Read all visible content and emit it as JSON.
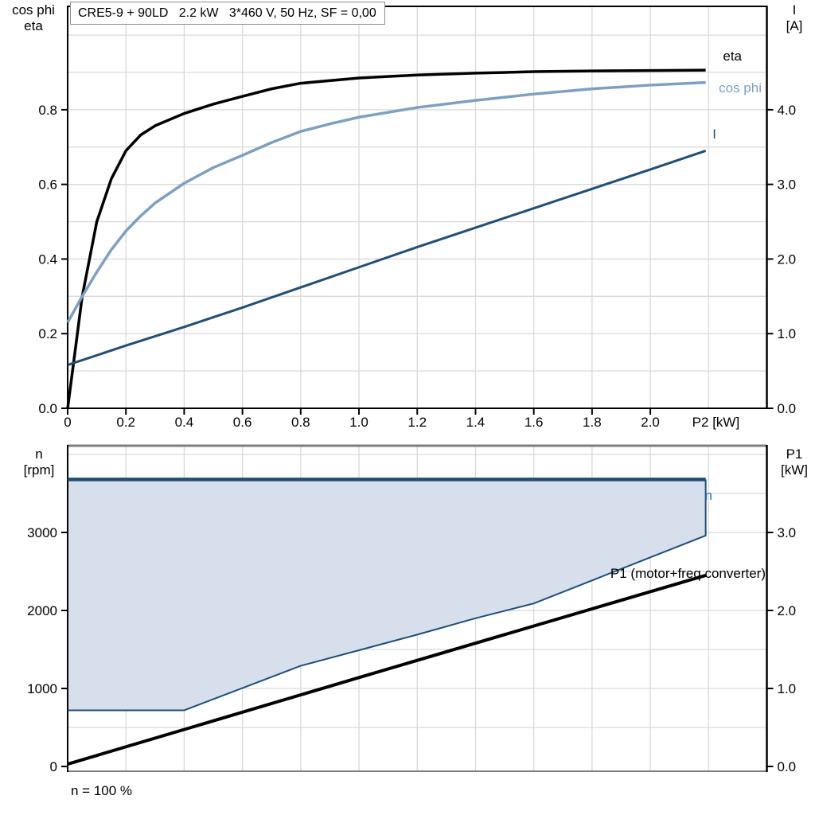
{
  "title": "CRE5-9 + 90LD   2.2 kW   3*460 V, 50 Hz, SF = 0,00",
  "footnote": "n = 100 %",
  "labels": {
    "top_left_axis_line1": "cos phi",
    "top_left_axis_line2": "eta",
    "top_right_axis_line1": "I",
    "top_right_axis_line2": "[A]",
    "bottom_left_axis_line1": "n",
    "bottom_left_axis_line2": "[rpm]",
    "bottom_right_axis_line1": "P1",
    "bottom_right_axis_line2": "[kW]",
    "curve_eta": "eta",
    "curve_cos_phi": "cos phi",
    "curve_current": "I",
    "curve_speed": "n",
    "curve_p1": "P1 (motor+freq.converter)"
  },
  "colors": {
    "black": "#000000",
    "dark_blue": "#1F4E79",
    "steel_blue": "#7C9FC2",
    "label_blue": "#2E74B5",
    "area_fill": "#D6DFEB",
    "grid": "#D9D9D9",
    "frame_gray": "#7F7F7F"
  },
  "chart_data": [
    {
      "id": "top",
      "type": "line",
      "title": "CRE5-9 + 90LD   2.2 kW   3*460 V, 50 Hz, SF = 0,00",
      "x_axis": {
        "label": "P2 [kW]",
        "min": 0,
        "max": 2.4,
        "grid_step": 0.2,
        "ticks": [
          {
            "v": 0,
            "t": "0"
          },
          {
            "v": 0.2,
            "t": "0.2"
          },
          {
            "v": 0.4,
            "t": "0.4"
          },
          {
            "v": 0.6,
            "t": "0.6"
          },
          {
            "v": 0.8,
            "t": "0.8"
          },
          {
            "v": 1.0,
            "t": "1.0"
          },
          {
            "v": 1.2,
            "t": "1.2"
          },
          {
            "v": 1.4,
            "t": "1.4"
          },
          {
            "v": 1.6,
            "t": "1.6"
          },
          {
            "v": 1.8,
            "t": "1.8"
          },
          {
            "v": 2.0,
            "t": "2.0"
          }
        ],
        "label_at": 2.225
      },
      "y_left": {
        "label": "cos phi / eta",
        "min": 0,
        "max": 1.077,
        "grid_step": 0.1,
        "ticks": [
          {
            "v": 0,
            "t": "0.0"
          },
          {
            "v": 0.2,
            "t": "0.2"
          },
          {
            "v": 0.4,
            "t": "0.4"
          },
          {
            "v": 0.6,
            "t": "0.6"
          },
          {
            "v": 0.8,
            "t": "0.8"
          }
        ]
      },
      "y_right": {
        "label": "I [A]",
        "min": 0,
        "max": 5.385,
        "ticks": [
          {
            "v": 0,
            "t": "0.0"
          },
          {
            "v": 1,
            "t": "1.0"
          },
          {
            "v": 2,
            "t": "2.0"
          },
          {
            "v": 3,
            "t": "3.0"
          },
          {
            "v": 4,
            "t": "4.0"
          }
        ]
      },
      "series": [
        {
          "name": "eta",
          "axis": "left",
          "color": "#000000",
          "width": 3.5,
          "points": [
            [
              0,
              0
            ],
            [
              0.03,
              0.18
            ],
            [
              0.05,
              0.3
            ],
            [
              0.08,
              0.42
            ],
            [
              0.1,
              0.5
            ],
            [
              0.15,
              0.615
            ],
            [
              0.2,
              0.69
            ],
            [
              0.25,
              0.732
            ],
            [
              0.3,
              0.757
            ],
            [
              0.4,
              0.79
            ],
            [
              0.5,
              0.815
            ],
            [
              0.6,
              0.836
            ],
            [
              0.7,
              0.856
            ],
            [
              0.8,
              0.871
            ],
            [
              1.0,
              0.885
            ],
            [
              1.2,
              0.893
            ],
            [
              1.4,
              0.898
            ],
            [
              1.6,
              0.902
            ],
            [
              1.8,
              0.904
            ],
            [
              2.0,
              0.905
            ],
            [
              2.19,
              0.906
            ]
          ]
        },
        {
          "name": "cos phi",
          "axis": "left",
          "color": "#7C9FC2",
          "width": 3.5,
          "points": [
            [
              0,
              0.23
            ],
            [
              0.05,
              0.3
            ],
            [
              0.1,
              0.365
            ],
            [
              0.15,
              0.425
            ],
            [
              0.2,
              0.475
            ],
            [
              0.25,
              0.515
            ],
            [
              0.3,
              0.55
            ],
            [
              0.4,
              0.603
            ],
            [
              0.5,
              0.645
            ],
            [
              0.6,
              0.678
            ],
            [
              0.7,
              0.712
            ],
            [
              0.8,
              0.742
            ],
            [
              0.9,
              0.762
            ],
            [
              1.0,
              0.78
            ],
            [
              1.2,
              0.806
            ],
            [
              1.4,
              0.825
            ],
            [
              1.6,
              0.842
            ],
            [
              1.8,
              0.856
            ],
            [
              2.0,
              0.866
            ],
            [
              2.19,
              0.873
            ]
          ]
        },
        {
          "name": "I",
          "axis": "right",
          "color": "#1F4E79",
          "width": 3,
          "points": [
            [
              0,
              0.58
            ],
            [
              0.2,
              0.84
            ],
            [
              0.4,
              1.09
            ],
            [
              0.6,
              1.35
            ],
            [
              0.8,
              1.62
            ],
            [
              1.0,
              1.89
            ],
            [
              1.2,
              2.16
            ],
            [
              1.4,
              2.42
            ],
            [
              1.6,
              2.68
            ],
            [
              1.8,
              2.94
            ],
            [
              2.0,
              3.2
            ],
            [
              2.19,
              3.45
            ]
          ]
        }
      ]
    },
    {
      "id": "bottom",
      "type": "line",
      "x_axis": {
        "label": "",
        "min": 0,
        "max": 2.4,
        "grid_step": 0.2,
        "ticks": []
      },
      "y_left": {
        "label": "n [rpm]",
        "min": -61,
        "max": 4112,
        "grid_step": 500,
        "ticks": [
          {
            "v": 0,
            "t": "0"
          },
          {
            "v": 1000,
            "t": "1000"
          },
          {
            "v": 2000,
            "t": "2000"
          },
          {
            "v": 3000,
            "t": "3000"
          }
        ]
      },
      "y_right": {
        "label": "P1 [kW]",
        "min": -0.061,
        "max": 4.112,
        "ticks": [
          {
            "v": 0,
            "t": "0.0"
          },
          {
            "v": 1,
            "t": "1.0"
          },
          {
            "v": 2,
            "t": "2.0"
          },
          {
            "v": 3,
            "t": "3.0"
          }
        ]
      },
      "area": {
        "name": "speed-operating-range",
        "axis": "left",
        "fill": "#D6DFEB",
        "points": [
          [
            0,
            3680
          ],
          [
            2.19,
            3680
          ],
          [
            2.19,
            2960
          ],
          [
            2.0,
            2680
          ],
          [
            1.8,
            2385
          ],
          [
            1.6,
            2090
          ],
          [
            1.4,
            1900
          ],
          [
            1.2,
            1690
          ],
          [
            1.0,
            1490
          ],
          [
            0.8,
            1290
          ],
          [
            0.4,
            720
          ],
          [
            0,
            720
          ]
        ]
      },
      "series": [
        {
          "name": "n-lower-boundary",
          "axis": "left",
          "color": "#1F4E79",
          "width": 2,
          "points": [
            [
              0,
              720
            ],
            [
              0.4,
              720
            ],
            [
              0.8,
              1290
            ],
            [
              1.0,
              1490
            ],
            [
              1.2,
              1690
            ],
            [
              1.4,
              1900
            ],
            [
              1.6,
              2090
            ],
            [
              1.8,
              2385
            ],
            [
              2.0,
              2680
            ],
            [
              2.19,
              2960
            ],
            [
              2.19,
              3680
            ]
          ]
        },
        {
          "name": "n",
          "axis": "left",
          "color": "#1F4E79",
          "width": 4.5,
          "points": [
            [
              0,
              3680
            ],
            [
              2.19,
              3680
            ]
          ]
        },
        {
          "name": "P1 (motor+freq.converter)",
          "axis": "right",
          "color": "#000000",
          "width": 4,
          "points": [
            [
              0,
              0.03
            ],
            [
              1.0,
              1.14
            ],
            [
              2.19,
              2.45
            ]
          ]
        }
      ],
      "footnote": "n = 100 %"
    }
  ]
}
